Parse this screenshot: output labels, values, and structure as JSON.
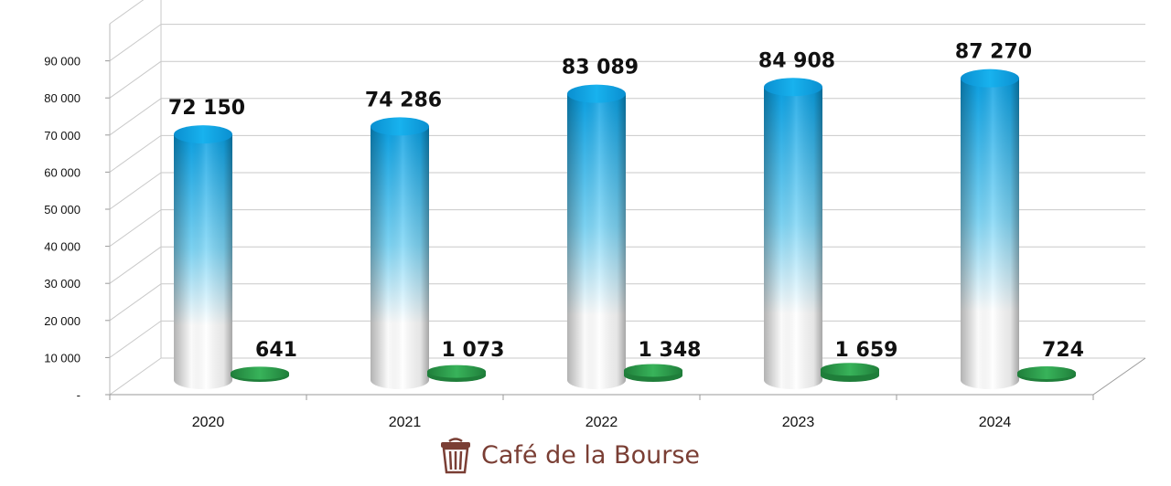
{
  "chart_data": {
    "type": "bar",
    "categories": [
      "2020",
      "2021",
      "2022",
      "2023",
      "2024"
    ],
    "series": [
      {
        "values": [
          72150,
          74286,
          83089,
          84908,
          87270
        ],
        "value_labels": [
          "72 150",
          "74 286",
          "83 089",
          "84 908",
          "87 270"
        ],
        "color": "#1aa9e6"
      },
      {
        "values": [
          641,
          1073,
          1348,
          1659,
          724
        ],
        "value_labels": [
          "641",
          "1 073",
          "1 348",
          "1 659",
          "724"
        ],
        "color": "#2e9e4f"
      }
    ],
    "y_tick_labels": [
      "-",
      "10 000",
      "20 000",
      "30 000",
      "40 000",
      "50 000",
      "60 000",
      "70 000",
      "80 000",
      "90 000"
    ],
    "ylim": [
      0,
      100000
    ],
    "grid": true,
    "style": "3d-cylinder"
  },
  "brand": {
    "text": "Café de la Bourse",
    "icon": "trash-bin-icon",
    "color": "#7a3e34"
  }
}
